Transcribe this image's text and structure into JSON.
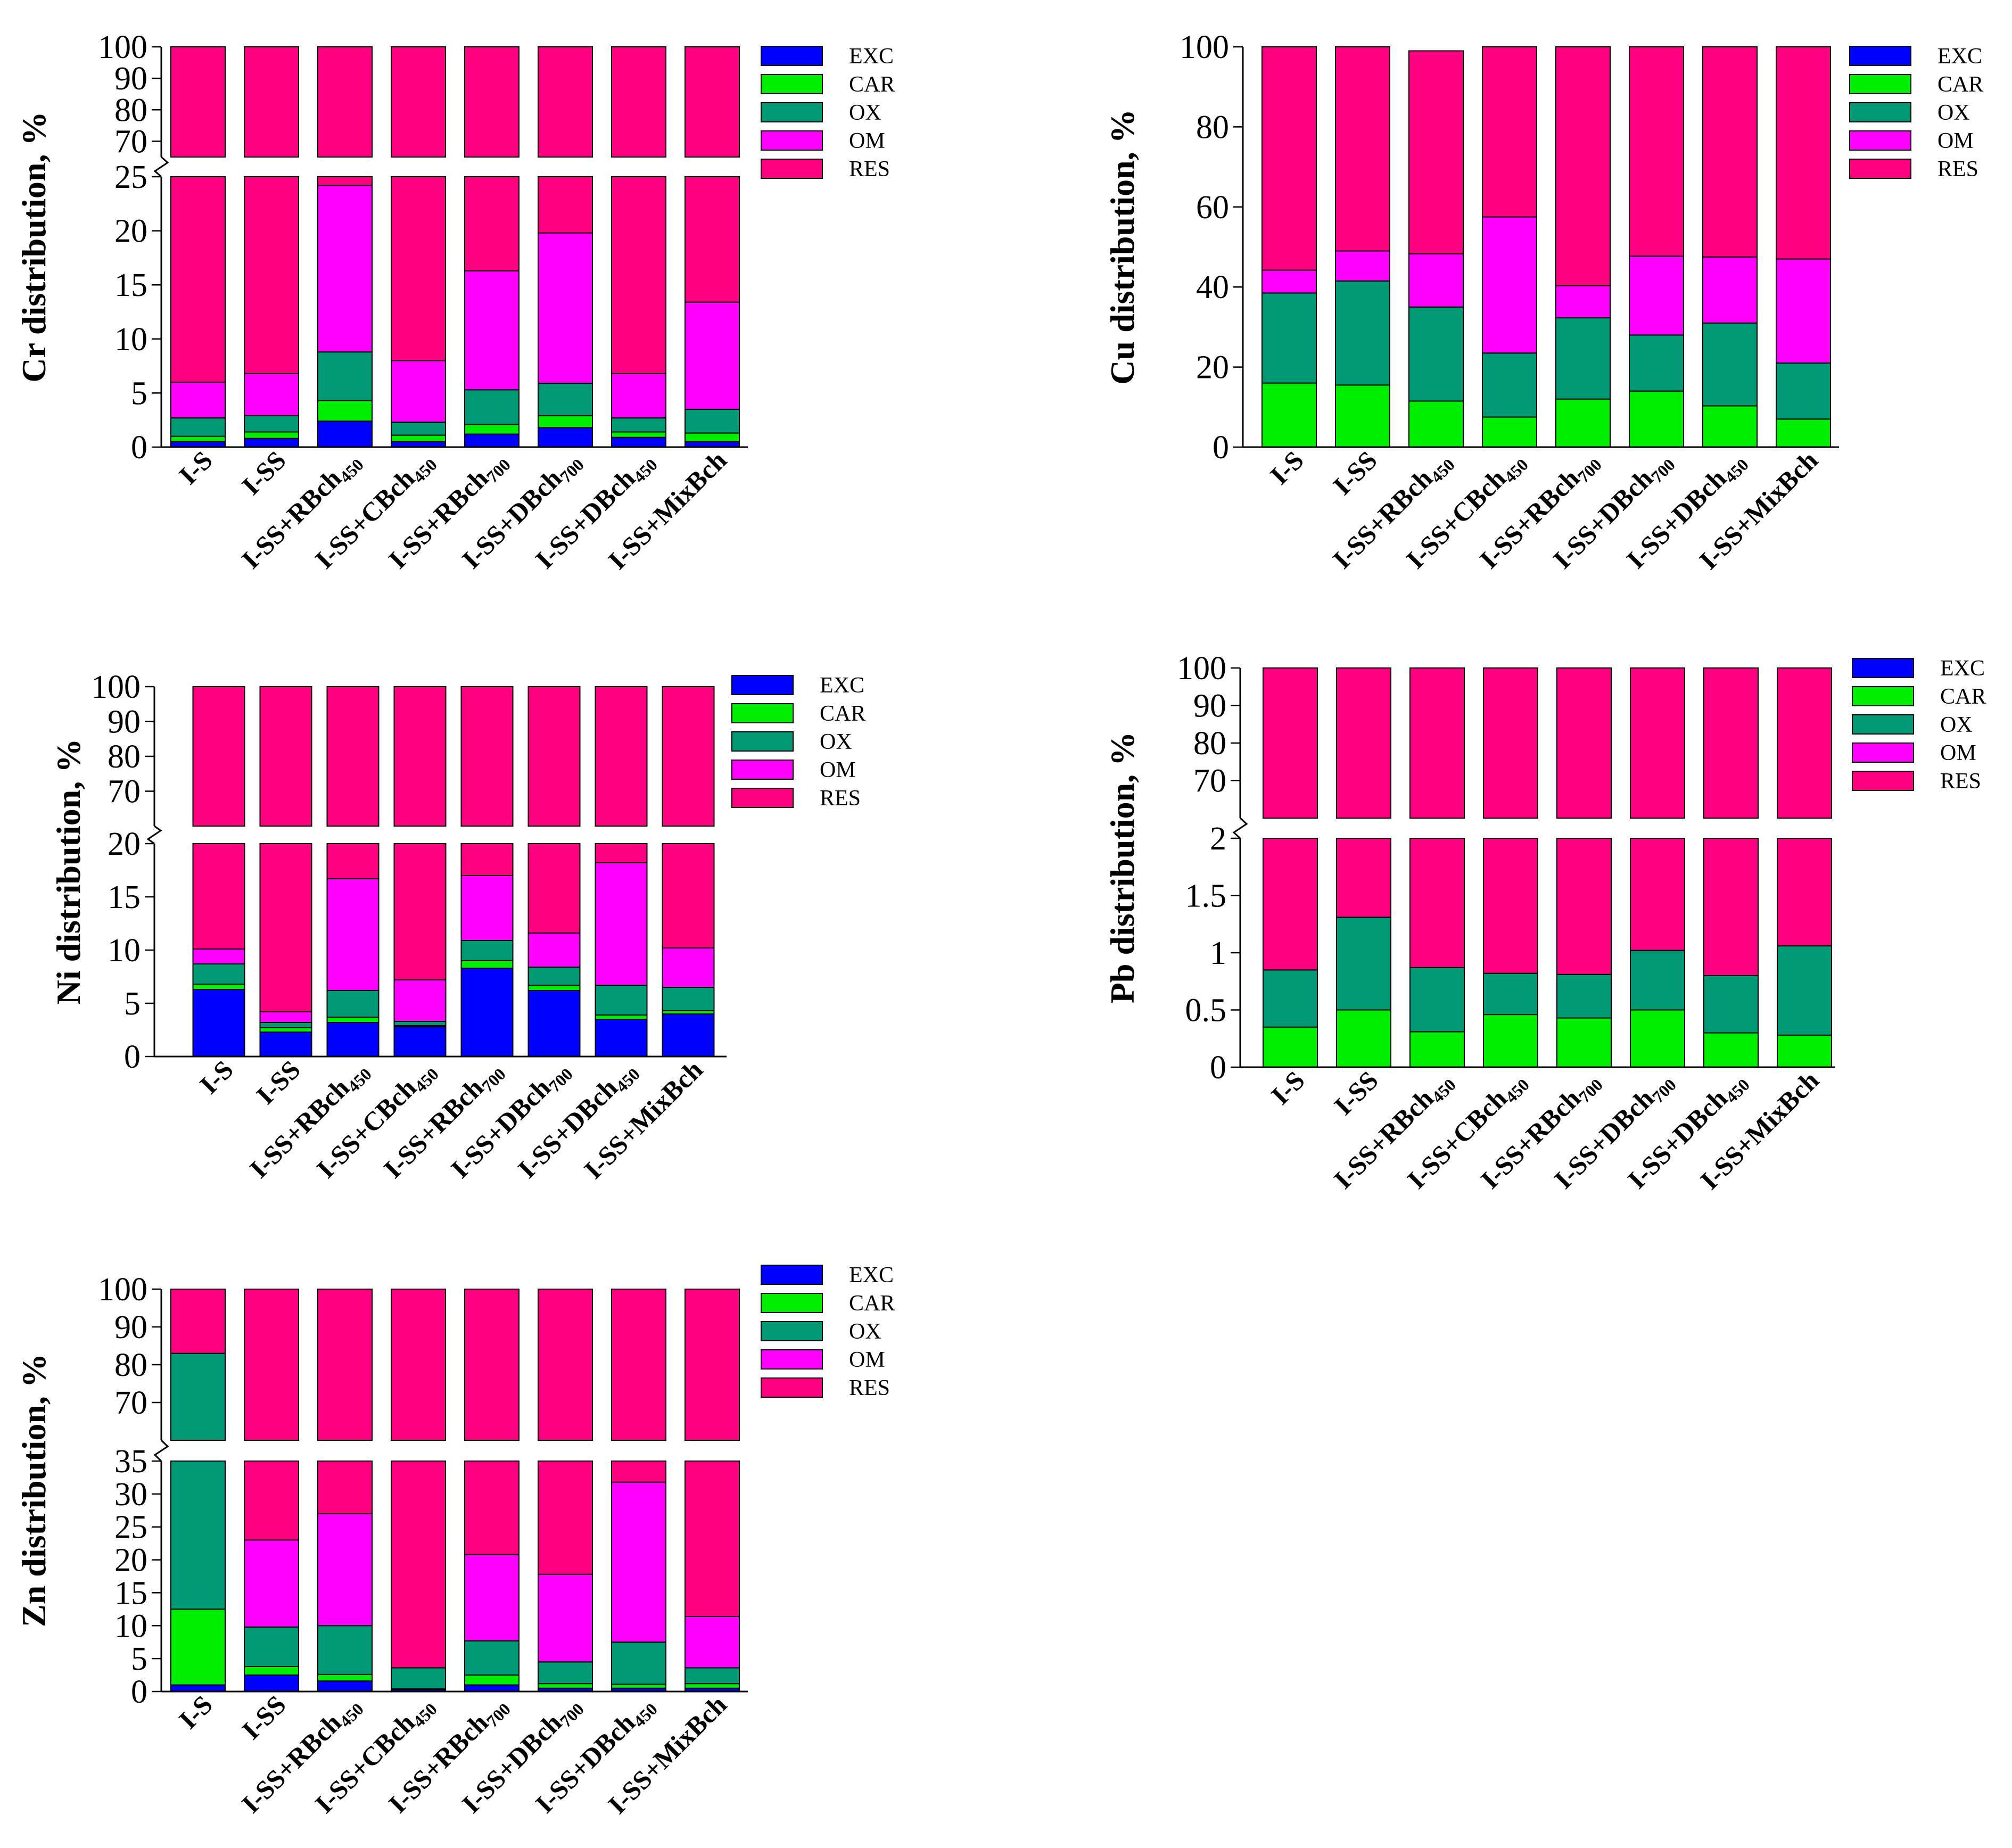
{
  "legend": [
    {
      "key": "exc",
      "label": "EXC",
      "color": "#0000FF"
    },
    {
      "key": "car",
      "label": "CAR",
      "color": "#00EE00"
    },
    {
      "key": "ox",
      "label": "OX",
      "color": "#009973"
    },
    {
      "key": "om",
      "label": "OM",
      "color": "#FF00FF"
    },
    {
      "key": "res",
      "label": "RES",
      "color": "#FF0080"
    }
  ],
  "categories": [
    {
      "base": "I-S",
      "sub": ""
    },
    {
      "base": "I-SS",
      "sub": ""
    },
    {
      "base": "I-SS+RBch",
      "sub": "450"
    },
    {
      "base": "I-SS+CBch",
      "sub": "450"
    },
    {
      "base": "I-SS+RBch",
      "sub": "700"
    },
    {
      "base": "I-SS+DBch",
      "sub": "700"
    },
    {
      "base": "I-SS+DBch",
      "sub": "450"
    },
    {
      "base": "I-SS+MixBch",
      "sub": ""
    }
  ],
  "chart_data": [
    {
      "type": "bar",
      "stacked": true,
      "element": "Cr",
      "ylabel": "Cr distribution, %",
      "broken_axis": true,
      "lower_ylim": [
        0,
        25
      ],
      "lower_ticks": [
        "0",
        "5",
        "10",
        "15",
        "20",
        "25"
      ],
      "upper_ylim": [
        65,
        100
      ],
      "upper_ticks": [
        "70",
        "80",
        "90",
        "100"
      ],
      "series": [
        {
          "name": "EXC",
          "values": [
            0.5,
            0.8,
            2.4,
            0.5,
            1.2,
            1.8,
            0.9,
            0.5
          ]
        },
        {
          "name": "CAR",
          "values": [
            0.5,
            0.6,
            1.9,
            0.6,
            0.9,
            1.1,
            0.5,
            0.8
          ]
        },
        {
          "name": "OX",
          "values": [
            1.7,
            1.5,
            4.5,
            1.2,
            3.2,
            3.0,
            1.3,
            2.2
          ]
        },
        {
          "name": "OM",
          "values": [
            3.3,
            3.9,
            15.4,
            5.7,
            11.0,
            13.9,
            4.1,
            9.9
          ]
        },
        {
          "name": "RES",
          "values": [
            94.0,
            93.2,
            75.8,
            92.0,
            83.7,
            80.2,
            93.2,
            86.6
          ]
        }
      ]
    },
    {
      "type": "bar",
      "stacked": true,
      "element": "Cu",
      "ylabel": "Cu distribution, %",
      "broken_axis": false,
      "ylim": [
        0,
        100
      ],
      "ticks": [
        "0",
        "20",
        "40",
        "60",
        "80",
        "100"
      ],
      "series": [
        {
          "name": "EXC",
          "values": [
            0,
            0,
            0,
            0,
            0,
            0,
            0,
            0
          ]
        },
        {
          "name": "CAR",
          "values": [
            16.0,
            15.5,
            11.5,
            7.5,
            12.0,
            14.0,
            10.3,
            7.0
          ]
        },
        {
          "name": "OX",
          "values": [
            22.5,
            26.0,
            23.5,
            16.0,
            20.3,
            14.0,
            20.7,
            14.0
          ]
        },
        {
          "name": "OM",
          "values": [
            5.7,
            7.5,
            13.3,
            34.0,
            8.0,
            19.7,
            16.5,
            26.0
          ]
        },
        {
          "name": "RES",
          "values": [
            55.8,
            51.0,
            50.7,
            42.5,
            59.7,
            52.3,
            52.5,
            53.0
          ]
        }
      ]
    },
    {
      "type": "bar",
      "stacked": true,
      "element": "Ni",
      "ylabel": "Ni distribution, %",
      "broken_axis": true,
      "lower_ylim": [
        0,
        20
      ],
      "lower_ticks": [
        "0",
        "5",
        "10",
        "15",
        "20"
      ],
      "upper_ylim": [
        60,
        100
      ],
      "upper_ticks": [
        "70",
        "80",
        "90",
        "100"
      ],
      "series": [
        {
          "name": "EXC",
          "values": [
            6.3,
            2.3,
            3.2,
            2.8,
            8.3,
            6.2,
            3.5,
            4.0
          ]
        },
        {
          "name": "CAR",
          "values": [
            0.5,
            0.4,
            0.5,
            0.1,
            0.7,
            0.5,
            0.4,
            0.3
          ]
        },
        {
          "name": "OX",
          "values": [
            1.9,
            0.5,
            2.5,
            0.4,
            1.9,
            1.7,
            2.8,
            2.2
          ]
        },
        {
          "name": "OM",
          "values": [
            1.4,
            1.0,
            10.5,
            3.9,
            6.1,
            3.2,
            11.5,
            3.7
          ]
        },
        {
          "name": "RES",
          "values": [
            89.9,
            95.8,
            83.3,
            92.8,
            83.0,
            88.4,
            81.8,
            89.8
          ]
        }
      ]
    },
    {
      "type": "bar",
      "stacked": true,
      "element": "Pb",
      "ylabel": "Pb distribution, %",
      "broken_axis": true,
      "lower_ylim": [
        0,
        2
      ],
      "lower_ticks": [
        "0",
        "0.5",
        "1",
        "1.5",
        "2"
      ],
      "upper_ylim": [
        60,
        100
      ],
      "upper_ticks": [
        "70",
        "80",
        "90",
        "100"
      ],
      "series": [
        {
          "name": "EXC",
          "values": [
            0,
            0,
            0,
            0,
            0,
            0,
            0,
            0
          ]
        },
        {
          "name": "CAR",
          "values": [
            0.35,
            0.5,
            0.31,
            0.46,
            0.43,
            0.5,
            0.3,
            0.28
          ]
        },
        {
          "name": "OX",
          "values": [
            0.5,
            0.81,
            0.56,
            0.36,
            0.38,
            0.52,
            0.5,
            0.78
          ]
        },
        {
          "name": "OM",
          "values": [
            0,
            0,
            0,
            0,
            0,
            0,
            0,
            0
          ]
        },
        {
          "name": "RES",
          "values": [
            99.15,
            98.69,
            99.13,
            99.18,
            99.19,
            98.98,
            99.2,
            98.94
          ]
        }
      ]
    },
    {
      "type": "bar",
      "stacked": true,
      "element": "Zn",
      "ylabel": "Zn distribution, %",
      "broken_axis": true,
      "lower_ylim": [
        0,
        35
      ],
      "lower_ticks": [
        "0",
        "5",
        "10",
        "15",
        "20",
        "25",
        "30",
        "35"
      ],
      "upper_ylim": [
        60,
        100
      ],
      "upper_ticks": [
        "70",
        "80",
        "90",
        "100"
      ],
      "series": [
        {
          "name": "EXC",
          "values": [
            1.0,
            2.5,
            1.6,
            0.3,
            1.0,
            0.5,
            0.5,
            0.5
          ]
        },
        {
          "name": "CAR",
          "values": [
            11.5,
            1.3,
            1.0,
            0.1,
            1.5,
            0.7,
            0.6,
            0.7
          ]
        },
        {
          "name": "OX",
          "values": [
            70.5,
            6.0,
            7.4,
            3.2,
            5.2,
            3.3,
            6.4,
            2.4
          ]
        },
        {
          "name": "OM",
          "values": [
            0,
            13.2,
            17.0,
            0,
            13.1,
            13.3,
            24.3,
            7.8
          ]
        },
        {
          "name": "RES",
          "values": [
            17.0,
            77.0,
            73.0,
            96.4,
            79.2,
            82.2,
            68.2,
            88.6
          ]
        }
      ]
    }
  ]
}
